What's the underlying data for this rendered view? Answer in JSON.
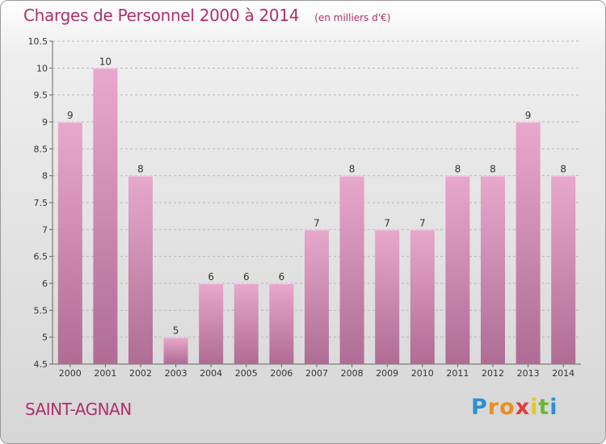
{
  "header": {
    "title": "Charges de Personnel 2000 à 2014",
    "subtitle": "(en milliers d'€)"
  },
  "footer": {
    "place": "SAINT-AGNAN",
    "logo_letters": [
      {
        "char": "P",
        "color": "#2c8fd4"
      },
      {
        "char": "r",
        "color": "#e8901f"
      },
      {
        "char": "o",
        "color": "#e8901f"
      },
      {
        "char": "x",
        "color": "#e23b3b"
      },
      {
        "char": "i",
        "color": "#e8c61f"
      },
      {
        "char": "t",
        "color": "#6cb832"
      },
      {
        "char": "i",
        "color": "#2c8fd4"
      }
    ]
  },
  "chart_data": {
    "type": "bar",
    "categories": [
      "2000",
      "2001",
      "2002",
      "2003",
      "2004",
      "2005",
      "2006",
      "2007",
      "2008",
      "2009",
      "2010",
      "2011",
      "2012",
      "2013",
      "2014"
    ],
    "values": [
      9,
      10,
      8,
      5,
      6,
      6,
      6,
      7,
      8,
      7,
      7,
      8,
      8,
      9,
      8
    ],
    "data_labels": [
      "9",
      "10",
      "8",
      "5",
      "6",
      "6",
      "6",
      "7",
      "8",
      "7",
      "7",
      "8",
      "8",
      "9",
      "8"
    ],
    "ylim": [
      4.5,
      10.5
    ],
    "yticks": [
      4.5,
      5,
      5.5,
      6,
      6.5,
      7,
      7.5,
      8,
      8.5,
      9,
      9.5,
      10,
      10.5
    ],
    "ytick_labels": [
      "4.5",
      "5",
      "5.5",
      "6",
      "6.5",
      "7",
      "7.5",
      "8",
      "8.5",
      "9",
      "9.5",
      "10",
      "10.5"
    ],
    "grid": "horizontal dashed",
    "colors": {
      "bar_top": "#e8a8cc",
      "bar_bottom": "#b06c94",
      "title": "#b0306a"
    }
  }
}
